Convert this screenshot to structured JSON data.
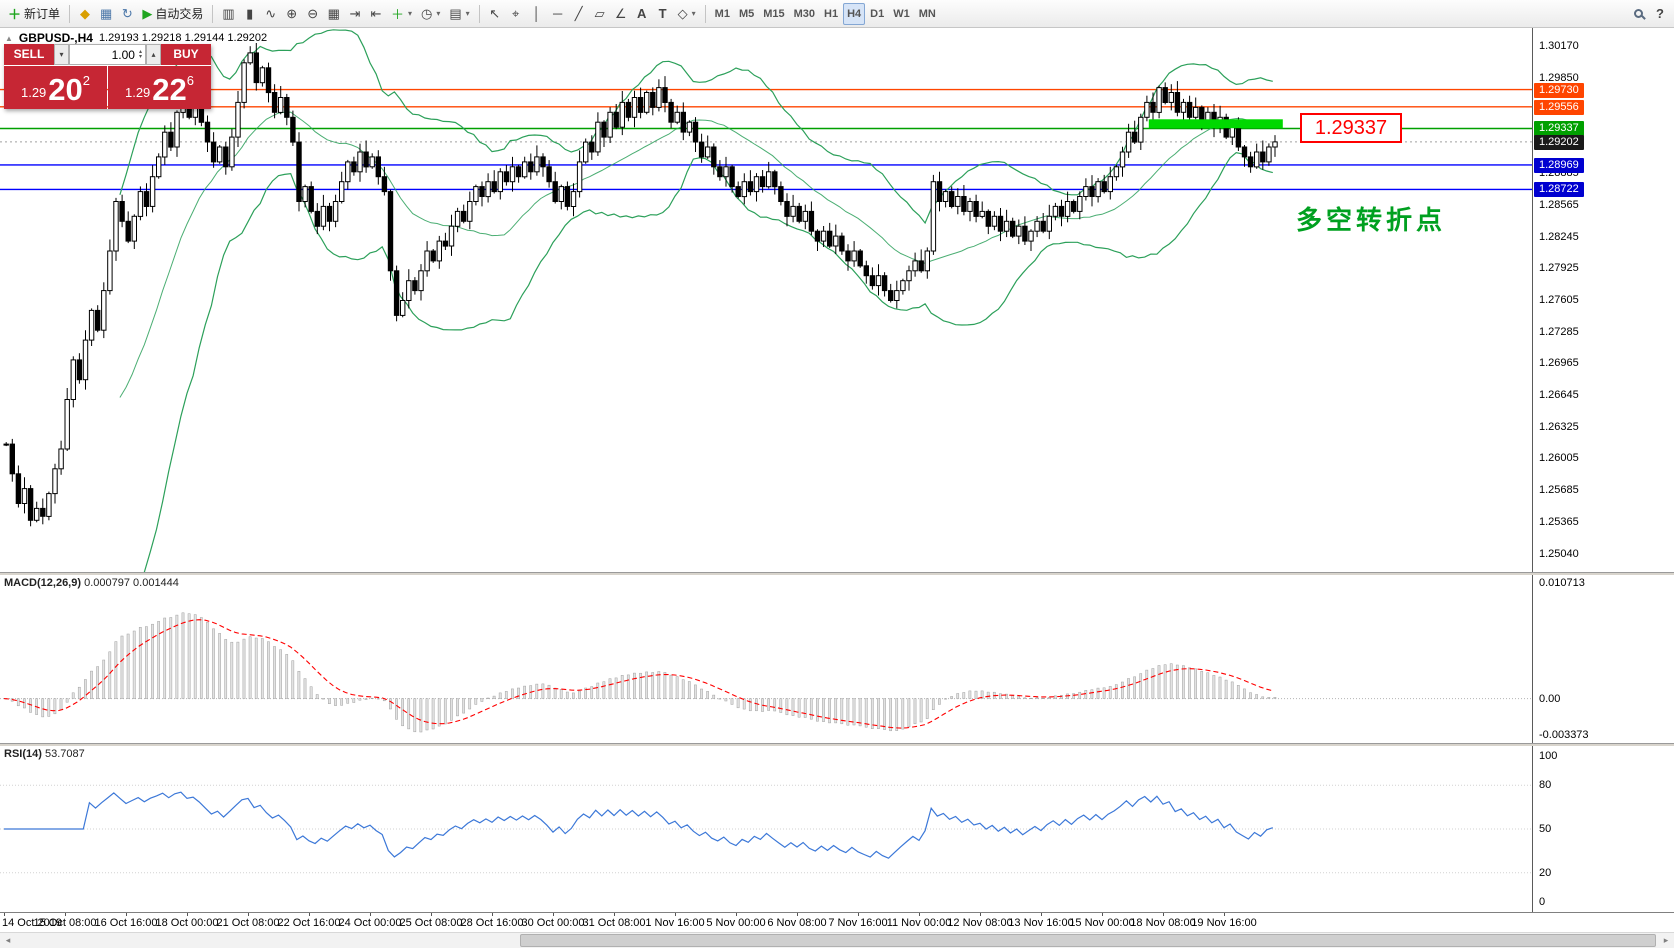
{
  "toolbar": {
    "new_order": {
      "label": "新订单"
    },
    "autotrading": {
      "label": "自动交易"
    },
    "left_icons": [
      {
        "name": "metaquotes-market-icon",
        "glyph": "◆",
        "color": "#d99f00"
      },
      {
        "name": "chart-window-icon",
        "glyph": "▦",
        "color": "#4a76a8"
      },
      {
        "name": "community-refresh-icon",
        "glyph": "↻",
        "color": "#4a76a8"
      }
    ],
    "chart_icons": [
      {
        "name": "bar-chart-icon",
        "glyph": "▥"
      },
      {
        "name": "candlestick-chart-icon",
        "glyph": "▮"
      },
      {
        "name": "line-chart-icon",
        "glyph": "∿"
      },
      {
        "name": "zoom-in-icon",
        "glyph": "⊕"
      },
      {
        "name": "zoom-out-icon",
        "glyph": "⊖"
      },
      {
        "name": "tile-windows-icon",
        "glyph": "▦"
      },
      {
        "name": "auto-scroll-icon",
        "glyph": "⇥"
      },
      {
        "name": "chart-shift-icon",
        "glyph": "⇤"
      },
      {
        "name": "indicators-icon",
        "glyph": "＋",
        "dropdown": true,
        "color": "#1fa51f"
      },
      {
        "name": "periods-icon",
        "glyph": "◷",
        "dropdown": true
      },
      {
        "name": "templates-icon",
        "glyph": "▤",
        "dropdown": true
      }
    ],
    "draw_icons": [
      {
        "name": "cursor-icon",
        "glyph": "↖"
      },
      {
        "name": "crosshair-icon",
        "glyph": "⌖"
      },
      {
        "name": "vertical-line-icon",
        "glyph": "│"
      },
      {
        "name": "horizontal-line-icon",
        "glyph": "─"
      },
      {
        "name": "trendline-icon",
        "glyph": "╱"
      },
      {
        "name": "channel-icon",
        "glyph": "▱"
      },
      {
        "name": "fibonacci-icon",
        "glyph": "∠"
      },
      {
        "name": "text-icon",
        "glyph": "A",
        "bold": true
      },
      {
        "name": "text-label-icon",
        "glyph": "T",
        "bold": true
      },
      {
        "name": "shapes-icon",
        "glyph": "◇",
        "dropdown": true
      }
    ],
    "timeframes": [
      {
        "label": "M1"
      },
      {
        "label": "M5"
      },
      {
        "label": "M15"
      },
      {
        "label": "M30"
      },
      {
        "label": "H1"
      },
      {
        "label": "H4",
        "active": true
      },
      {
        "label": "D1"
      },
      {
        "label": "W1"
      },
      {
        "label": "MN"
      }
    ],
    "right_icons": [
      {
        "name": "search-icon",
        "shape": "magnifier"
      },
      {
        "name": "help-icon",
        "glyph": "?",
        "bold": true
      }
    ]
  },
  "chart_header": {
    "symbol": "GBPUSD-,H4",
    "ohlc": "1.29193 1.29218 1.29144 1.29202"
  },
  "trade_panel": {
    "sell_label": "SELL",
    "buy_label": "BUY",
    "volume": "1.00",
    "sell_price": {
      "small": "1.29",
      "big": "20",
      "sup": "2"
    },
    "buy_price": {
      "small": "1.29",
      "big": "22",
      "sup": "6"
    }
  },
  "annotations": {
    "price_label": "1.29337",
    "note_text": "多空转折点"
  },
  "indicators": {
    "macd_label": "MACD(12,26,9)",
    "macd_values": "0.000797 0.001444",
    "rsi_label": "RSI(14)",
    "rsi_value": "53.7087"
  },
  "scrollbar": {
    "left_arrow": "◂",
    "right_arrow": "▸"
  },
  "chart_data": {
    "type": "candlestick",
    "symbol": "GBPUSD",
    "timeframe": "H4",
    "ylim": [
      1.2504,
      1.3017
    ],
    "closes": [
      1.2615,
      1.2585,
      1.2555,
      1.257,
      1.2538,
      1.255,
      1.2542,
      1.2565,
      1.259,
      1.261,
      1.266,
      1.27,
      1.268,
      1.272,
      1.275,
      1.273,
      1.277,
      1.281,
      1.286,
      1.284,
      1.282,
      1.2845,
      1.287,
      1.2855,
      1.2885,
      1.2905,
      1.293,
      1.2915,
      1.295,
      1.2965,
      1.2945,
      1.2955,
      1.294,
      1.292,
      1.29,
      1.2915,
      1.2895,
      1.2925,
      1.296,
      1.3,
      1.301,
      1.298,
      1.2995,
      1.297,
      1.295,
      1.2965,
      1.2945,
      1.292,
      1.286,
      1.2875,
      1.285,
      1.2835,
      1.2855,
      1.284,
      1.286,
      1.288,
      1.29,
      1.289,
      1.291,
      1.2895,
      1.2905,
      1.2885,
      1.287,
      1.279,
      1.2745,
      1.276,
      1.278,
      1.277,
      1.279,
      1.281,
      1.28,
      1.282,
      1.2815,
      1.2835,
      1.285,
      1.284,
      1.286,
      1.2875,
      1.2865,
      1.288,
      1.287,
      1.289,
      1.288,
      1.2895,
      1.2885,
      1.29,
      1.289,
      1.2905,
      1.2895,
      1.288,
      1.286,
      1.2875,
      1.2855,
      1.287,
      1.29,
      1.292,
      1.291,
      1.294,
      1.2925,
      1.295,
      1.2935,
      1.296,
      1.2945,
      1.2965,
      1.295,
      1.297,
      1.2955,
      1.2975,
      1.296,
      1.294,
      1.295,
      1.293,
      1.294,
      1.292,
      1.2905,
      1.2915,
      1.2895,
      1.2885,
      1.2895,
      1.2875,
      1.2865,
      1.288,
      1.287,
      1.2885,
      1.2875,
      1.289,
      1.2875,
      1.286,
      1.2845,
      1.2855,
      1.284,
      1.285,
      1.283,
      1.282,
      1.283,
      1.2815,
      1.2825,
      1.281,
      1.28,
      1.281,
      1.2795,
      1.2785,
      1.2775,
      1.2785,
      1.277,
      1.276,
      1.277,
      1.278,
      1.279,
      1.28,
      1.279,
      1.281,
      1.288,
      1.286,
      1.287,
      1.2855,
      1.2865,
      1.285,
      1.286,
      1.2845,
      1.285,
      1.2835,
      1.2845,
      1.283,
      1.284,
      1.2825,
      1.2835,
      1.282,
      1.283,
      1.284,
      1.283,
      1.2845,
      1.2855,
      1.2845,
      1.286,
      1.285,
      1.2865,
      1.2875,
      1.2865,
      1.288,
      1.287,
      1.2885,
      1.2895,
      1.291,
      1.293,
      1.292,
      1.2945,
      1.296,
      1.295,
      1.2975,
      1.296,
      1.297,
      1.295,
      1.296,
      1.2945,
      1.2955,
      1.294,
      1.295,
      1.2935,
      1.2945,
      1.2925,
      1.2935,
      1.2915,
      1.2905,
      1.2895,
      1.291,
      1.29,
      1.2915,
      1.29202
    ],
    "bollinger": {
      "period": 20,
      "deviation": 2,
      "color": "#2ca05a"
    },
    "horizontal_lines": [
      {
        "price": 1.2973,
        "color": "#ff4500"
      },
      {
        "price": 1.29556,
        "color": "#ff4500"
      },
      {
        "price": 1.29337,
        "color": "#00a000"
      },
      {
        "price": 1.28969,
        "color": "#0000ff"
      },
      {
        "price": 1.28722,
        "color": "#0000ff"
      }
    ],
    "bid": {
      "price": 1.29202
    },
    "highlight_bar": {
      "price_top": 1.2943,
      "price_bottom": 1.2934,
      "start_index": 188,
      "color": "#00d800"
    },
    "price_axis_labels": [
      "1.30170",
      "1.29850",
      "1.28885",
      "1.28565",
      "1.28245",
      "1.27925",
      "1.27605",
      "1.27285",
      "1.26965",
      "1.26645",
      "1.26325",
      "1.26005",
      "1.25685",
      "1.25365",
      "1.25040"
    ],
    "price_axis_tags": [
      {
        "text": "1.29730",
        "bg": "#ff4500"
      },
      {
        "text": "1.29556",
        "bg": "#ff4500"
      },
      {
        "text": "1.29337",
        "bg": "#00a000"
      },
      {
        "text": "1.29202",
        "bg": "#1a1a1a"
      },
      {
        "text": "1.28969",
        "bg": "#0000d0"
      },
      {
        "text": "1.28722",
        "bg": "#0000d0"
      }
    ],
    "macd": {
      "fast": 12,
      "slow": 26,
      "signal": 9,
      "range": [
        -0.003373,
        0.010713
      ],
      "axis_labels": [
        "0.010713",
        "0.00",
        "-0.003373"
      ],
      "histogram_color": "#e2e2e2",
      "signal_color": "#ff0000"
    },
    "rsi": {
      "period": 14,
      "axis_labels": [
        "100",
        "80",
        "50",
        "20",
        "0"
      ],
      "levels": [
        80,
        50,
        20
      ],
      "color": "#3c78d8"
    },
    "time_axis": [
      "14 Oct 2019",
      "15 Oct 08:00",
      "16 Oct 16:00",
      "18 Oct 00:00",
      "21 Oct 08:00",
      "22 Oct 16:00",
      "24 Oct 00:00",
      "25 Oct 08:00",
      "28 Oct 16:00",
      "30 Oct 00:00",
      "31 Oct 08:00",
      "1 Nov 16:00",
      "5 Nov 00:00",
      "6 Nov 08:00",
      "7 Nov 16:00",
      "11 Nov 00:00",
      "12 Nov 08:00",
      "13 Nov 16:00",
      "15 Nov 00:00",
      "18 Nov 08:00",
      "19 Nov 16:00"
    ]
  }
}
